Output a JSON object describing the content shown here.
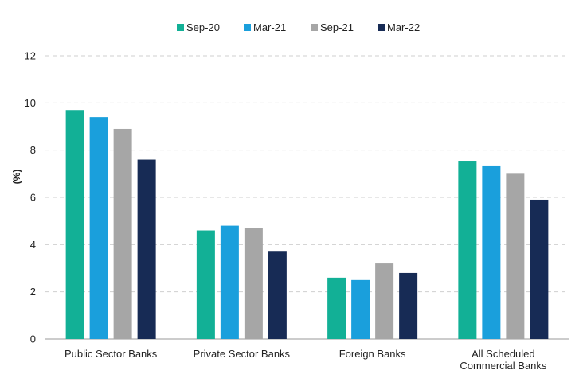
{
  "chart_data": {
    "type": "bar",
    "title": "",
    "xlabel": "",
    "ylabel": "(%)",
    "ylim": [
      0,
      12
    ],
    "yticks": [
      0,
      2,
      4,
      6,
      8,
      10,
      12
    ],
    "grid": true,
    "legend_position": "top-center",
    "categories": [
      [
        "Public Sector Banks"
      ],
      [
        "Private Sector Banks"
      ],
      [
        "Foreign Banks"
      ],
      [
        "All Scheduled",
        "Commercial Banks"
      ]
    ],
    "series": [
      {
        "name": "Sep-20",
        "color": "#12b096",
        "values": [
          9.7,
          4.6,
          2.6,
          7.55
        ]
      },
      {
        "name": "Mar-21",
        "color": "#1a9fdc",
        "values": [
          9.4,
          4.8,
          2.5,
          7.35
        ]
      },
      {
        "name": "Sep-21",
        "color": "#a6a6a6",
        "values": [
          8.9,
          4.7,
          3.2,
          7.0
        ]
      },
      {
        "name": "Mar-22",
        "color": "#172b55",
        "values": [
          7.6,
          3.7,
          2.8,
          5.9
        ]
      }
    ]
  }
}
